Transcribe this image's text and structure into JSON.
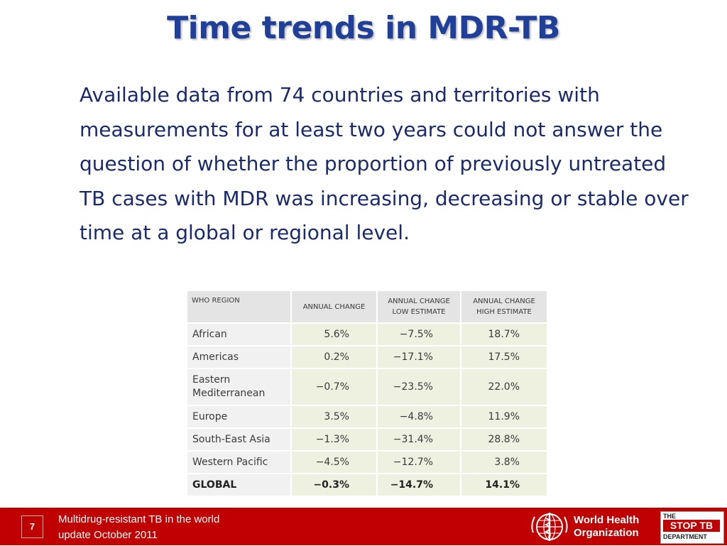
{
  "slide": {
    "title": "Time trends in MDR-TB",
    "body": "Available data from 74 countries and territories with measurements for at least two years could not answer the question of whether the proportion of previously untreated TB cases with MDR was increasing, decreasing or stable over time at a global or regional level."
  },
  "table": {
    "headers": [
      "WHO REGION",
      "ANNUAL CHANGE",
      "ANNUAL CHANGE LOW ESTIMATE",
      "ANNUAL CHANGE HIGH ESTIMATE"
    ],
    "rows": [
      [
        "African",
        "5.6%",
        "−7.5%",
        "18.7%"
      ],
      [
        "Americas",
        "0.2%",
        "−17.1%",
        "17.5%"
      ],
      [
        "Eastern Mediterranean",
        "−0.7%",
        "−23.5%",
        "22.0%"
      ],
      [
        "Europe",
        "3.5%",
        "−4.8%",
        "11.9%"
      ],
      [
        "South-East Asia",
        "−1.3%",
        "−31.4%",
        "28.8%"
      ],
      [
        "Western Pacific",
        "−4.5%",
        "−12.7%",
        "3.8%"
      ],
      [
        "GLOBAL",
        "−0.3%",
        "−14.7%",
        "14.1%"
      ]
    ]
  },
  "footer": {
    "page_number": "7",
    "line1": "Multidrug-resistant TB in the world",
    "line2": "update October 2011",
    "who_line1": "World Health",
    "who_line2": "Organization",
    "stoptb_top": "THE",
    "stoptb_mid": "STOP TB",
    "stoptb_bottom": "DEPARTMENT",
    "who_logo_icon": "who-emblem-icon"
  },
  "colors": {
    "title": "#1f3f99",
    "body_text": "#1a2a6c",
    "footer_bar": "#c00000",
    "cell_values": "#eef1e0"
  }
}
